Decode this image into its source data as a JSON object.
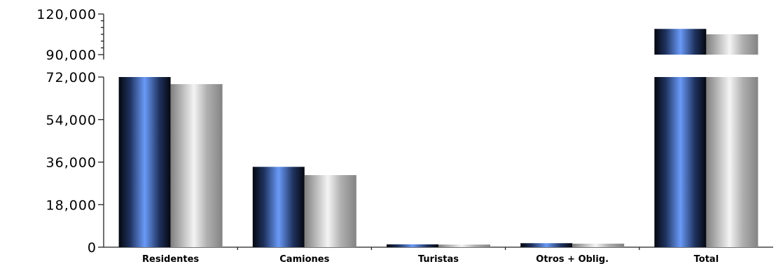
{
  "chart_data": {
    "type": "bar",
    "title": "",
    "xlabel": "",
    "ylabel": "",
    "categories": [
      "Residentes",
      "Camiones",
      "Turistas",
      "Otros + Oblig.",
      "Total"
    ],
    "series": [
      {
        "values": [
          72000,
          34000,
          1200,
          1700,
          109000
        ],
        "color": "#5b8cf0"
      },
      {
        "values": [
          69000,
          30500,
          1100,
          1500,
          105000
        ],
        "color": "#d8d8d8"
      }
    ],
    "broken_axis": {
      "lower_range": [
        0,
        72000
      ],
      "upper_range": [
        90000,
        120000
      ]
    },
    "y_ticks_lower": [
      "0",
      "18,000",
      "36,000",
      "54,000",
      "72,000"
    ],
    "y_ticks_upper": [
      "90,000",
      "120,000"
    ],
    "grid": false,
    "legend": "none"
  }
}
